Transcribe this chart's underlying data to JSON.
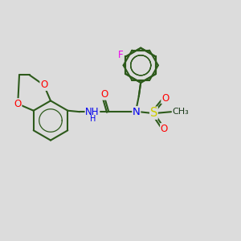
{
  "bg_color": "#dcdcdc",
  "bond_color": "#2d5a1b",
  "bond_width": 1.5,
  "atom_colors": {
    "O": "#ff0000",
    "N": "#0000ee",
    "S": "#cccc00",
    "F": "#ee00ee",
    "C": "#1a3a1a"
  },
  "font_size": 8.5,
  "fig_size": [
    3.0,
    3.0
  ],
  "dpi": 100,
  "xlim": [
    0,
    10
  ],
  "ylim": [
    0,
    10
  ]
}
